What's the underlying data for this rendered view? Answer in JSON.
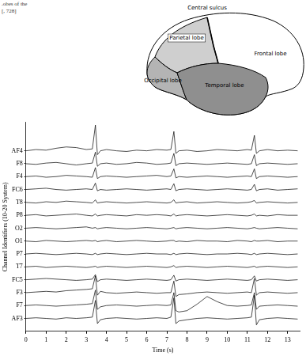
{
  "caption": {
    "lines": [
      ".obes of the",
      "[, 728]"
    ]
  },
  "diagram": {
    "labels": {
      "central_sulcus": "Central sulcus",
      "parietal_lobe": "Parietal lobe",
      "frontal_lobe": "Frontal lobe",
      "occipital_lobe": "Occipital lobe",
      "temporal_lobe": "Temporal lobe"
    }
  },
  "chart_data": {
    "type": "line",
    "x_label": "Time (s)",
    "y_label": "Channel Identifiers (10-20 System)",
    "grid": false,
    "xlim": [
      0,
      13.6
    ],
    "xticks": [
      0,
      1,
      2,
      3,
      4,
      5,
      6,
      7,
      8,
      9,
      10,
      11,
      12,
      13
    ],
    "ylim": [
      -1,
      15.2
    ],
    "yticks": [
      {
        "value": 13,
        "label": "AF4"
      },
      {
        "value": 12,
        "label": "F8"
      },
      {
        "value": 11,
        "label": "F4"
      },
      {
        "value": 10,
        "label": "FC6"
      },
      {
        "value": 9,
        "label": "T8"
      },
      {
        "value": 8,
        "label": "P8"
      },
      {
        "value": 7,
        "label": "O2"
      },
      {
        "value": 6,
        "label": "O1"
      },
      {
        "value": 5,
        "label": "P7"
      },
      {
        "value": 4,
        "label": "T7"
      },
      {
        "value": 3,
        "label": "FC5"
      },
      {
        "value": 2,
        "label": "F3"
      },
      {
        "value": 1,
        "label": "F7"
      },
      {
        "value": 0,
        "label": "AF3"
      }
    ],
    "x": [
      0,
      0.5,
      1,
      1.5,
      2,
      2.5,
      3,
      3.3,
      3.45,
      3.55,
      3.7,
      4,
      4.5,
      5,
      5.5,
      6,
      6.5,
      7,
      7.2,
      7.35,
      7.45,
      7.6,
      8,
      8.5,
      9,
      9.5,
      10,
      10.5,
      11,
      11.2,
      11.35,
      11.45,
      11.6,
      12,
      12.5,
      13,
      13.5
    ],
    "series": [
      {
        "color": "#000000",
        "values": [
          13.0,
          13.1,
          13.05,
          13.2,
          13.3,
          13.25,
          13.1,
          13.15,
          15.0,
          12.7,
          13.0,
          13.1,
          13.0,
          12.95,
          13.05,
          13.0,
          13.1,
          13.05,
          13.1,
          14.5,
          12.8,
          13.0,
          13.05,
          12.95,
          13.0,
          13.1,
          13.05,
          13.0,
          13.1,
          13.05,
          14.2,
          12.8,
          13.0,
          13.1,
          13.0,
          13.05,
          13.0
        ]
      },
      {
        "color": "#000000",
        "values": [
          12.0,
          11.95,
          12.05,
          12.1,
          12.0,
          11.9,
          12.0,
          12.05,
          12.9,
          11.8,
          12.0,
          12.05,
          11.95,
          12.0,
          12.1,
          12.05,
          11.95,
          12.0,
          12.05,
          12.8,
          11.85,
          12.0,
          12.05,
          12.0,
          11.95,
          12.0,
          12.05,
          12.0,
          11.95,
          12.0,
          12.7,
          11.85,
          12.0,
          12.05,
          12.0,
          11.95,
          12.0
        ]
      },
      {
        "color": "#000000",
        "values": [
          11.0,
          11.05,
          10.95,
          11.0,
          11.1,
          11.05,
          11.0,
          10.95,
          11.7,
          10.85,
          11.0,
          11.05,
          11.0,
          10.95,
          11.0,
          11.05,
          11.1,
          11.0,
          11.05,
          11.6,
          10.9,
          11.0,
          10.95,
          11.0,
          11.05,
          11.0,
          10.95,
          11.0,
          11.05,
          11.0,
          11.6,
          10.85,
          11.0,
          11.05,
          11.0,
          10.95,
          11.0
        ]
      },
      {
        "color": "#000000",
        "values": [
          10.0,
          10.05,
          10.1,
          10.0,
          9.95,
          10.0,
          10.05,
          10.0,
          10.5,
          9.9,
          10.0,
          9.95,
          10.0,
          10.05,
          10.0,
          9.95,
          10.0,
          10.05,
          10.0,
          10.45,
          9.9,
          10.0,
          10.05,
          10.0,
          9.95,
          10.0,
          10.05,
          10.0,
          9.95,
          10.0,
          10.4,
          9.9,
          10.0,
          10.05,
          9.95,
          10.0,
          10.05
        ]
      },
      {
        "color": "#000000",
        "values": [
          9.0,
          8.95,
          9.05,
          9.0,
          9.1,
          9.05,
          9.0,
          8.95,
          9.2,
          8.95,
          9.0,
          9.05,
          9.0,
          8.95,
          9.0,
          9.05,
          9.0,
          8.95,
          9.0,
          9.2,
          8.95,
          9.0,
          9.05,
          8.95,
          9.0,
          9.05,
          9.0,
          8.95,
          9.0,
          9.05,
          9.15,
          8.95,
          9.0,
          9.05,
          9.0,
          8.95,
          9.0
        ]
      },
      {
        "color": "#000000",
        "values": [
          8.0,
          8.05,
          7.95,
          8.0,
          8.05,
          8.1,
          8.0,
          7.95,
          8.1,
          7.95,
          8.0,
          8.05,
          8.0,
          7.95,
          8.05,
          8.0,
          8.05,
          8.0,
          7.95,
          8.1,
          7.95,
          8.0,
          8.05,
          8.0,
          7.95,
          8.0,
          8.05,
          8.0,
          7.95,
          8.0,
          8.1,
          7.95,
          8.0,
          7.95,
          8.05,
          8.0,
          8.0
        ]
      },
      {
        "color": "#000000",
        "values": [
          7.0,
          7.05,
          7.0,
          6.95,
          7.0,
          7.05,
          7.1,
          7.0,
          7.05,
          6.95,
          7.0,
          7.05,
          7.0,
          6.95,
          7.0,
          7.05,
          7.0,
          6.95,
          7.0,
          7.05,
          6.95,
          7.0,
          7.05,
          7.0,
          6.95,
          7.0,
          7.05,
          7.0,
          6.95,
          7.0,
          7.05,
          7.0,
          6.95,
          7.0,
          7.05,
          7.0,
          6.95
        ]
      },
      {
        "color": "#000000",
        "values": [
          6.0,
          5.95,
          6.05,
          6.0,
          5.95,
          6.0,
          6.05,
          6.0,
          6.05,
          5.95,
          6.0,
          6.05,
          5.95,
          6.0,
          6.05,
          6.0,
          5.95,
          6.0,
          6.05,
          6.05,
          5.95,
          6.0,
          5.95,
          6.05,
          6.0,
          6.0,
          5.95,
          6.05,
          6.0,
          5.95,
          6.05,
          6.0,
          6.0,
          6.05,
          5.95,
          6.0,
          6.0
        ]
      },
      {
        "color": "#000000",
        "values": [
          5.0,
          5.05,
          5.0,
          4.95,
          5.0,
          5.05,
          5.0,
          4.95,
          5.05,
          4.95,
          5.0,
          5.05,
          5.0,
          4.95,
          5.0,
          5.05,
          5.0,
          5.0,
          4.95,
          5.05,
          4.95,
          5.0,
          5.05,
          5.0,
          4.95,
          5.0,
          5.0,
          5.05,
          5.0,
          4.95,
          5.05,
          4.95,
          5.0,
          5.05,
          5.0,
          4.95,
          5.0
        ]
      },
      {
        "color": "#000000",
        "values": [
          4.0,
          4.05,
          3.95,
          4.0,
          4.05,
          4.0,
          3.95,
          4.0,
          4.05,
          3.95,
          4.0,
          4.05,
          4.0,
          3.95,
          4.0,
          4.05,
          4.0,
          3.95,
          4.0,
          4.1,
          3.95,
          4.0,
          4.05,
          4.0,
          3.95,
          4.0,
          4.05,
          4.0,
          3.95,
          4.0,
          4.05,
          3.95,
          4.0,
          4.05,
          4.0,
          3.95,
          4.0
        ]
      },
      {
        "color": "#000000",
        "values": [
          3.0,
          3.05,
          3.1,
          3.05,
          3.0,
          2.95,
          3.0,
          3.05,
          3.4,
          2.85,
          3.0,
          3.05,
          3.0,
          2.95,
          3.0,
          3.05,
          3.0,
          2.95,
          3.0,
          3.35,
          2.9,
          3.0,
          3.05,
          3.0,
          2.95,
          3.0,
          3.05,
          3.0,
          2.95,
          3.0,
          3.3,
          2.9,
          3.0,
          3.05,
          3.0,
          2.95,
          3.0
        ]
      },
      {
        "color": "#000000",
        "values": [
          2.0,
          2.05,
          2.1,
          2.05,
          2.15,
          2.2,
          2.25,
          2.3,
          3.3,
          1.8,
          2.1,
          2.0,
          1.95,
          2.0,
          2.05,
          2.0,
          1.95,
          2.0,
          2.0,
          2.9,
          1.7,
          1.85,
          1.9,
          2.0,
          2.05,
          2.0,
          1.95,
          2.0,
          2.05,
          2.0,
          3.1,
          1.8,
          2.0,
          2.05,
          2.0,
          1.95,
          2.0
        ]
      },
      {
        "color": "#000000",
        "values": [
          1.0,
          1.05,
          1.0,
          0.95,
          1.0,
          1.05,
          1.1,
          1.15,
          2.2,
          0.7,
          0.9,
          1.0,
          1.05,
          1.0,
          0.95,
          1.0,
          1.05,
          1.0,
          1.05,
          2.0,
          0.6,
          0.5,
          0.6,
          1.1,
          1.7,
          1.3,
          1.0,
          0.95,
          1.0,
          1.05,
          2.0,
          0.7,
          0.95,
          1.0,
          1.05,
          1.0,
          0.95
        ]
      },
      {
        "color": "#000000",
        "values": [
          0.0,
          0.05,
          0.0,
          -0.05,
          0.05,
          0.0,
          0.05,
          0.1,
          1.4,
          -0.4,
          -0.1,
          0.0,
          0.05,
          0.0,
          -0.05,
          0.0,
          0.05,
          0.0,
          0.1,
          1.6,
          -0.4,
          -0.2,
          -0.1,
          0.0,
          0.05,
          0.0,
          -0.05,
          0.0,
          0.05,
          0.1,
          1.8,
          -0.5,
          -0.1,
          0.0,
          0.05,
          0.0,
          -0.05
        ]
      }
    ]
  }
}
